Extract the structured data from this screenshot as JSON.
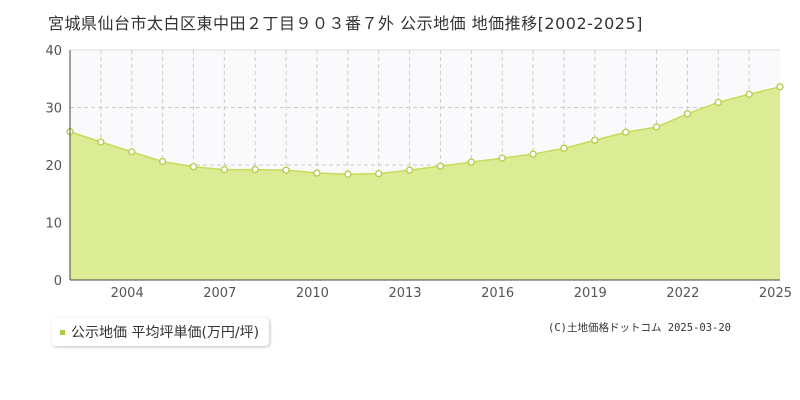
{
  "title": "宮城県仙台市太白区東中田２丁目９０３番７外 公示地価 地価推移[2002-2025]",
  "legend": {
    "label": "公示地価 平均坪単価(万円/坪)"
  },
  "copyright": "(C)土地価格ドットコム 2025-03-20",
  "colors": {
    "area_fill": "#dcec95",
    "line": "#c4dc5a",
    "point_stroke": "#b2cc45",
    "plot_bg": "#fafafc",
    "legend_swatch": "#a8cc3a"
  },
  "chart_data": {
    "type": "area",
    "ylim": [
      0,
      40
    ],
    "yticks": [
      "0",
      "10",
      "20",
      "30",
      "40"
    ],
    "xlim": [
      2002,
      2025
    ],
    "xticks": [
      "2004",
      "2007",
      "2010",
      "2013",
      "2016",
      "2019",
      "2022",
      "2025"
    ],
    "grid": true,
    "legend_position": "bottom-left",
    "series": [
      {
        "name": "公示地価 平均坪単価(万円/坪)",
        "x": [
          2002,
          2003,
          2004,
          2005,
          2006,
          2007,
          2008,
          2009,
          2010,
          2011,
          2012,
          2013,
          2014,
          2015,
          2016,
          2017,
          2018,
          2019,
          2020,
          2021,
          2022,
          2023,
          2024,
          2025
        ],
        "values": [
          25.8,
          24.0,
          22.3,
          20.6,
          19.7,
          19.2,
          19.2,
          19.1,
          18.6,
          18.4,
          18.5,
          19.1,
          19.8,
          20.5,
          21.2,
          21.9,
          22.9,
          24.3,
          25.7,
          26.6,
          28.9,
          30.9,
          32.3,
          33.6
        ]
      }
    ]
  }
}
